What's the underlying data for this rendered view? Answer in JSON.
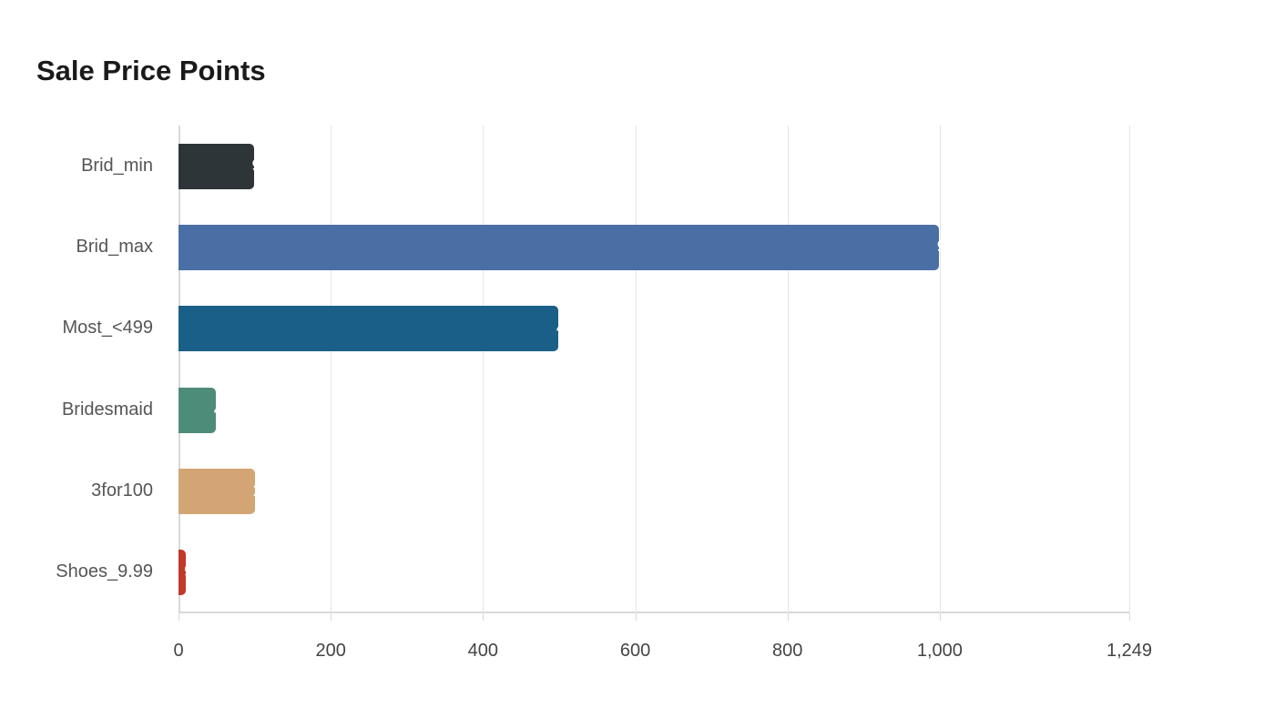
{
  "chart_data": {
    "type": "bar",
    "orientation": "horizontal",
    "title": "Sale Price Points",
    "categories": [
      "Brid_min",
      "Brid_max",
      "Most_<499",
      "Bridesmaid",
      "3for100",
      "Shoes_9.99"
    ],
    "values": [
      99,
      999,
      499,
      49,
      100,
      9.99
    ],
    "colors": [
      "#2e3538",
      "#4a6fa5",
      "#1a5f87",
      "#4e8c7a",
      "#d4a574",
      "#c0392b"
    ],
    "xlabel": "",
    "ylabel": "",
    "xlim": [
      0,
      1249
    ],
    "xticks": [
      "0",
      "200",
      "400",
      "600",
      "800",
      "1,000",
      "1,249"
    ],
    "xtick_values": [
      0,
      200,
      400,
      600,
      800,
      1000,
      1249
    ],
    "grid": true,
    "legend": null
  }
}
